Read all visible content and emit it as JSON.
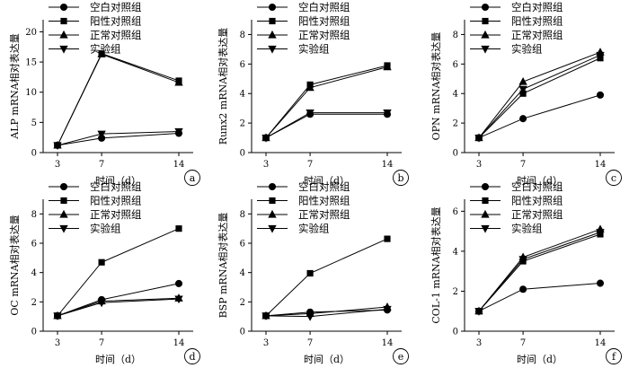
{
  "chart_data": [
    {
      "type": "line",
      "panel_label": "a",
      "ylabel": "ALP mRNA相对表达量",
      "xlabel": "时间（d）",
      "categories": [
        "3",
        "7",
        "14"
      ],
      "ylim": [
        0,
        22
      ],
      "yticks": [
        0,
        5,
        10,
        15,
        20
      ],
      "series": [
        {
          "name": "空白对照组",
          "marker": "circle",
          "values": [
            1.2,
            2.4,
            3.2
          ]
        },
        {
          "name": "阳性对照组",
          "marker": "square",
          "values": [
            1.2,
            16.4,
            11.9
          ]
        },
        {
          "name": "正常对照组",
          "marker": "triangle-up",
          "values": [
            1.2,
            16.3,
            11.6
          ]
        },
        {
          "name": "实验组",
          "marker": "triangle-down",
          "values": [
            1.2,
            3.1,
            3.5
          ]
        }
      ]
    },
    {
      "type": "line",
      "panel_label": "b",
      "ylabel": "Runx2 mRNA相对表达量",
      "xlabel": "时间（d）",
      "categories": [
        "3",
        "7",
        "14"
      ],
      "ylim": [
        0,
        9
      ],
      "yticks": [
        0,
        2,
        4,
        6,
        8
      ],
      "series": [
        {
          "name": "空白对照组",
          "marker": "circle",
          "values": [
            1.0,
            2.6,
            2.6
          ]
        },
        {
          "name": "阳性对照组",
          "marker": "square",
          "values": [
            1.0,
            4.6,
            5.9
          ]
        },
        {
          "name": "正常对照组",
          "marker": "triangle-up",
          "values": [
            1.0,
            4.4,
            5.8
          ]
        },
        {
          "name": "实验组",
          "marker": "triangle-down",
          "values": [
            1.0,
            2.7,
            2.7
          ]
        }
      ]
    },
    {
      "type": "line",
      "panel_label": "c",
      "ylabel": "OPN mRNA相对表达量",
      "xlabel": "时间（d）",
      "categories": [
        "3",
        "7",
        "14"
      ],
      "ylim": [
        0,
        9
      ],
      "yticks": [
        0,
        2,
        4,
        6,
        8
      ],
      "series": [
        {
          "name": "空白对照组",
          "marker": "circle",
          "values": [
            1.0,
            2.3,
            3.9
          ]
        },
        {
          "name": "阳性对照组",
          "marker": "square",
          "values": [
            1.0,
            4.0,
            6.4
          ]
        },
        {
          "name": "正常对照组",
          "marker": "triangle-up",
          "values": [
            1.0,
            4.8,
            6.8
          ]
        },
        {
          "name": "实验组",
          "marker": "triangle-down",
          "values": [
            1.0,
            4.3,
            6.6
          ]
        }
      ]
    },
    {
      "type": "line",
      "panel_label": "d",
      "ylabel": "OC mRNA相对表达量",
      "xlabel": "时间（d）",
      "categories": [
        "3",
        "7",
        "14"
      ],
      "ylim": [
        0,
        9
      ],
      "yticks": [
        0,
        2,
        4,
        6,
        8
      ],
      "series": [
        {
          "name": "空白对照组",
          "marker": "circle",
          "values": [
            1.05,
            2.15,
            3.25
          ]
        },
        {
          "name": "阳性对照组",
          "marker": "square",
          "values": [
            1.05,
            4.7,
            7.0
          ]
        },
        {
          "name": "正常对照组",
          "marker": "triangle-up",
          "values": [
            1.05,
            2.05,
            2.25
          ]
        },
        {
          "name": "实验组",
          "marker": "triangle-down",
          "values": [
            1.05,
            1.95,
            2.2
          ]
        }
      ]
    },
    {
      "type": "line",
      "panel_label": "e",
      "ylabel": "BSP mRNA相对表达量",
      "xlabel": "时间（d）",
      "categories": [
        "3",
        "7",
        "14"
      ],
      "ylim": [
        0,
        9
      ],
      "yticks": [
        0,
        2,
        4,
        6,
        8
      ],
      "series": [
        {
          "name": "空白对照组",
          "marker": "circle",
          "values": [
            1.05,
            1.3,
            1.45
          ]
        },
        {
          "name": "阳性对照组",
          "marker": "square",
          "values": [
            1.05,
            3.95,
            6.3
          ]
        },
        {
          "name": "正常对照组",
          "marker": "triangle-up",
          "values": [
            1.05,
            1.2,
            1.65
          ]
        },
        {
          "name": "实验组",
          "marker": "triangle-down",
          "values": [
            1.05,
            1.0,
            1.5
          ]
        }
      ]
    },
    {
      "type": "line",
      "panel_label": "f",
      "ylabel": "COL-1 mRNA相对表达量",
      "xlabel": "时间（d）",
      "categories": [
        "3",
        "7",
        "14"
      ],
      "ylim": [
        0,
        6.6
      ],
      "yticks": [
        0,
        2,
        4,
        6
      ],
      "series": [
        {
          "name": "空白对照组",
          "marker": "circle",
          "values": [
            1.0,
            2.1,
            2.4
          ]
        },
        {
          "name": "阳性对照组",
          "marker": "square",
          "values": [
            1.0,
            3.5,
            4.85
          ]
        },
        {
          "name": "正常对照组",
          "marker": "triangle-up",
          "values": [
            1.0,
            3.7,
            5.1
          ]
        },
        {
          "name": "实验组",
          "marker": "triangle-down",
          "values": [
            1.0,
            3.6,
            4.95
          ]
        }
      ]
    }
  ]
}
